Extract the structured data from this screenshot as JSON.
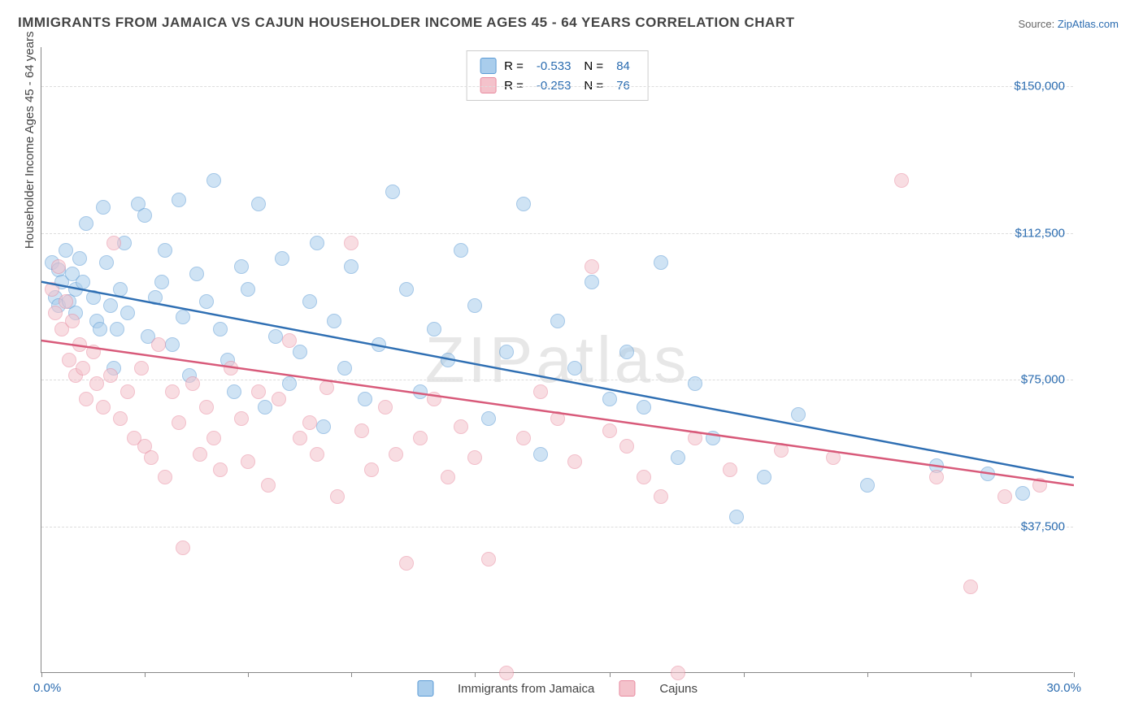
{
  "title": "IMMIGRANTS FROM JAMAICA VS CAJUN HOUSEHOLDER INCOME AGES 45 - 64 YEARS CORRELATION CHART",
  "source_prefix": "Source: ",
  "source_link": "ZipAtlas.com",
  "watermark": "ZIPatlas",
  "ylabel": "Householder Income Ages 45 - 64 years",
  "chart": {
    "type": "scatter",
    "xlim": [
      0,
      30
    ],
    "ylim": [
      0,
      160000
    ],
    "xticks_pct": [
      0,
      10,
      20,
      30,
      42,
      55,
      68,
      80,
      90,
      100
    ],
    "yticks": [
      {
        "v": 37500,
        "label": "$37,500"
      },
      {
        "v": 75000,
        "label": "$75,000"
      },
      {
        "v": 112500,
        "label": "$112,500"
      },
      {
        "v": 150000,
        "label": "$150,000"
      }
    ],
    "xmin_label": "0.0%",
    "xmax_label": "30.0%",
    "background_color": "#ffffff",
    "grid_color": "#dddddd",
    "point_radius": 9,
    "point_opacity": 0.55,
    "series": [
      {
        "id": "jamaica",
        "label": "Immigrants from Jamaica",
        "fill": "#a9cdec",
        "stroke": "#5b9bd5",
        "line_color": "#2f6fb3",
        "R": "-0.533",
        "N": "84",
        "trend": {
          "x1": 0,
          "y1": 100000,
          "x2": 30,
          "y2": 50000
        },
        "points": [
          [
            0.3,
            105000
          ],
          [
            0.4,
            96000
          ],
          [
            0.5,
            103000
          ],
          [
            0.5,
            94000
          ],
          [
            0.6,
            100000
          ],
          [
            0.7,
            108000
          ],
          [
            0.8,
            95000
          ],
          [
            0.9,
            102000
          ],
          [
            1.0,
            98000
          ],
          [
            1.0,
            92000
          ],
          [
            1.1,
            106000
          ],
          [
            1.2,
            100000
          ],
          [
            1.3,
            115000
          ],
          [
            1.5,
            96000
          ],
          [
            1.6,
            90000
          ],
          [
            1.7,
            88000
          ],
          [
            1.8,
            119000
          ],
          [
            1.9,
            105000
          ],
          [
            2.0,
            94000
          ],
          [
            2.1,
            78000
          ],
          [
            2.2,
            88000
          ],
          [
            2.3,
            98000
          ],
          [
            2.4,
            110000
          ],
          [
            2.5,
            92000
          ],
          [
            2.8,
            120000
          ],
          [
            3.0,
            117000
          ],
          [
            3.1,
            86000
          ],
          [
            3.3,
            96000
          ],
          [
            3.5,
            100000
          ],
          [
            3.6,
            108000
          ],
          [
            3.8,
            84000
          ],
          [
            4.0,
            121000
          ],
          [
            4.1,
            91000
          ],
          [
            4.3,
            76000
          ],
          [
            4.5,
            102000
          ],
          [
            4.8,
            95000
          ],
          [
            5.0,
            126000
          ],
          [
            5.2,
            88000
          ],
          [
            5.4,
            80000
          ],
          [
            5.6,
            72000
          ],
          [
            5.8,
            104000
          ],
          [
            6.0,
            98000
          ],
          [
            6.3,
            120000
          ],
          [
            6.5,
            68000
          ],
          [
            6.8,
            86000
          ],
          [
            7.0,
            106000
          ],
          [
            7.2,
            74000
          ],
          [
            7.5,
            82000
          ],
          [
            7.8,
            95000
          ],
          [
            8.0,
            110000
          ],
          [
            8.2,
            63000
          ],
          [
            8.5,
            90000
          ],
          [
            8.8,
            78000
          ],
          [
            9.0,
            104000
          ],
          [
            9.4,
            70000
          ],
          [
            9.8,
            84000
          ],
          [
            10.2,
            123000
          ],
          [
            10.6,
            98000
          ],
          [
            11.0,
            72000
          ],
          [
            11.4,
            88000
          ],
          [
            11.8,
            80000
          ],
          [
            12.2,
            108000
          ],
          [
            12.6,
            94000
          ],
          [
            13.0,
            65000
          ],
          [
            13.5,
            82000
          ],
          [
            14.0,
            120000
          ],
          [
            14.5,
            56000
          ],
          [
            15.0,
            90000
          ],
          [
            15.5,
            78000
          ],
          [
            16.0,
            100000
          ],
          [
            16.5,
            70000
          ],
          [
            17.0,
            82000
          ],
          [
            17.5,
            68000
          ],
          [
            18.0,
            105000
          ],
          [
            18.5,
            55000
          ],
          [
            19.0,
            74000
          ],
          [
            19.5,
            60000
          ],
          [
            20.2,
            40000
          ],
          [
            21.0,
            50000
          ],
          [
            22.0,
            66000
          ],
          [
            24.0,
            48000
          ],
          [
            26.0,
            53000
          ],
          [
            27.5,
            51000
          ],
          [
            28.5,
            46000
          ]
        ]
      },
      {
        "id": "cajuns",
        "label": "Cajuns",
        "fill": "#f4c2cb",
        "stroke": "#e88ba0",
        "line_color": "#d85a7a",
        "R": "-0.253",
        "N": "76",
        "trend": {
          "x1": 0,
          "y1": 85000,
          "x2": 30,
          "y2": 48000
        },
        "points": [
          [
            0.3,
            98000
          ],
          [
            0.4,
            92000
          ],
          [
            0.5,
            104000
          ],
          [
            0.6,
            88000
          ],
          [
            0.7,
            95000
          ],
          [
            0.8,
            80000
          ],
          [
            0.9,
            90000
          ],
          [
            1.0,
            76000
          ],
          [
            1.1,
            84000
          ],
          [
            1.2,
            78000
          ],
          [
            1.3,
            70000
          ],
          [
            1.5,
            82000
          ],
          [
            1.6,
            74000
          ],
          [
            1.8,
            68000
          ],
          [
            2.0,
            76000
          ],
          [
            2.1,
            110000
          ],
          [
            2.3,
            65000
          ],
          [
            2.5,
            72000
          ],
          [
            2.7,
            60000
          ],
          [
            2.9,
            78000
          ],
          [
            3.0,
            58000
          ],
          [
            3.2,
            55000
          ],
          [
            3.4,
            84000
          ],
          [
            3.6,
            50000
          ],
          [
            3.8,
            72000
          ],
          [
            4.0,
            64000
          ],
          [
            4.1,
            32000
          ],
          [
            4.4,
            74000
          ],
          [
            4.6,
            56000
          ],
          [
            4.8,
            68000
          ],
          [
            5.0,
            60000
          ],
          [
            5.2,
            52000
          ],
          [
            5.5,
            78000
          ],
          [
            5.8,
            65000
          ],
          [
            6.0,
            54000
          ],
          [
            6.3,
            72000
          ],
          [
            6.6,
            48000
          ],
          [
            6.9,
            70000
          ],
          [
            7.2,
            85000
          ],
          [
            7.5,
            60000
          ],
          [
            7.8,
            64000
          ],
          [
            8.0,
            56000
          ],
          [
            8.3,
            73000
          ],
          [
            8.6,
            45000
          ],
          [
            9.0,
            110000
          ],
          [
            9.3,
            62000
          ],
          [
            9.6,
            52000
          ],
          [
            10.0,
            68000
          ],
          [
            10.3,
            56000
          ],
          [
            10.6,
            28000
          ],
          [
            11.0,
            60000
          ],
          [
            11.4,
            70000
          ],
          [
            11.8,
            50000
          ],
          [
            12.2,
            63000
          ],
          [
            12.6,
            55000
          ],
          [
            13.0,
            29000
          ],
          [
            13.5,
            0
          ],
          [
            14.0,
            60000
          ],
          [
            14.5,
            72000
          ],
          [
            15.0,
            65000
          ],
          [
            15.5,
            54000
          ],
          [
            16.0,
            104000
          ],
          [
            16.5,
            62000
          ],
          [
            17.0,
            58000
          ],
          [
            17.5,
            50000
          ],
          [
            18.0,
            45000
          ],
          [
            18.5,
            0
          ],
          [
            19.0,
            60000
          ],
          [
            20.0,
            52000
          ],
          [
            21.5,
            57000
          ],
          [
            23.0,
            55000
          ],
          [
            25.0,
            126000
          ],
          [
            26.0,
            50000
          ],
          [
            27.0,
            22000
          ],
          [
            28.0,
            45000
          ],
          [
            29.0,
            48000
          ]
        ]
      }
    ]
  }
}
